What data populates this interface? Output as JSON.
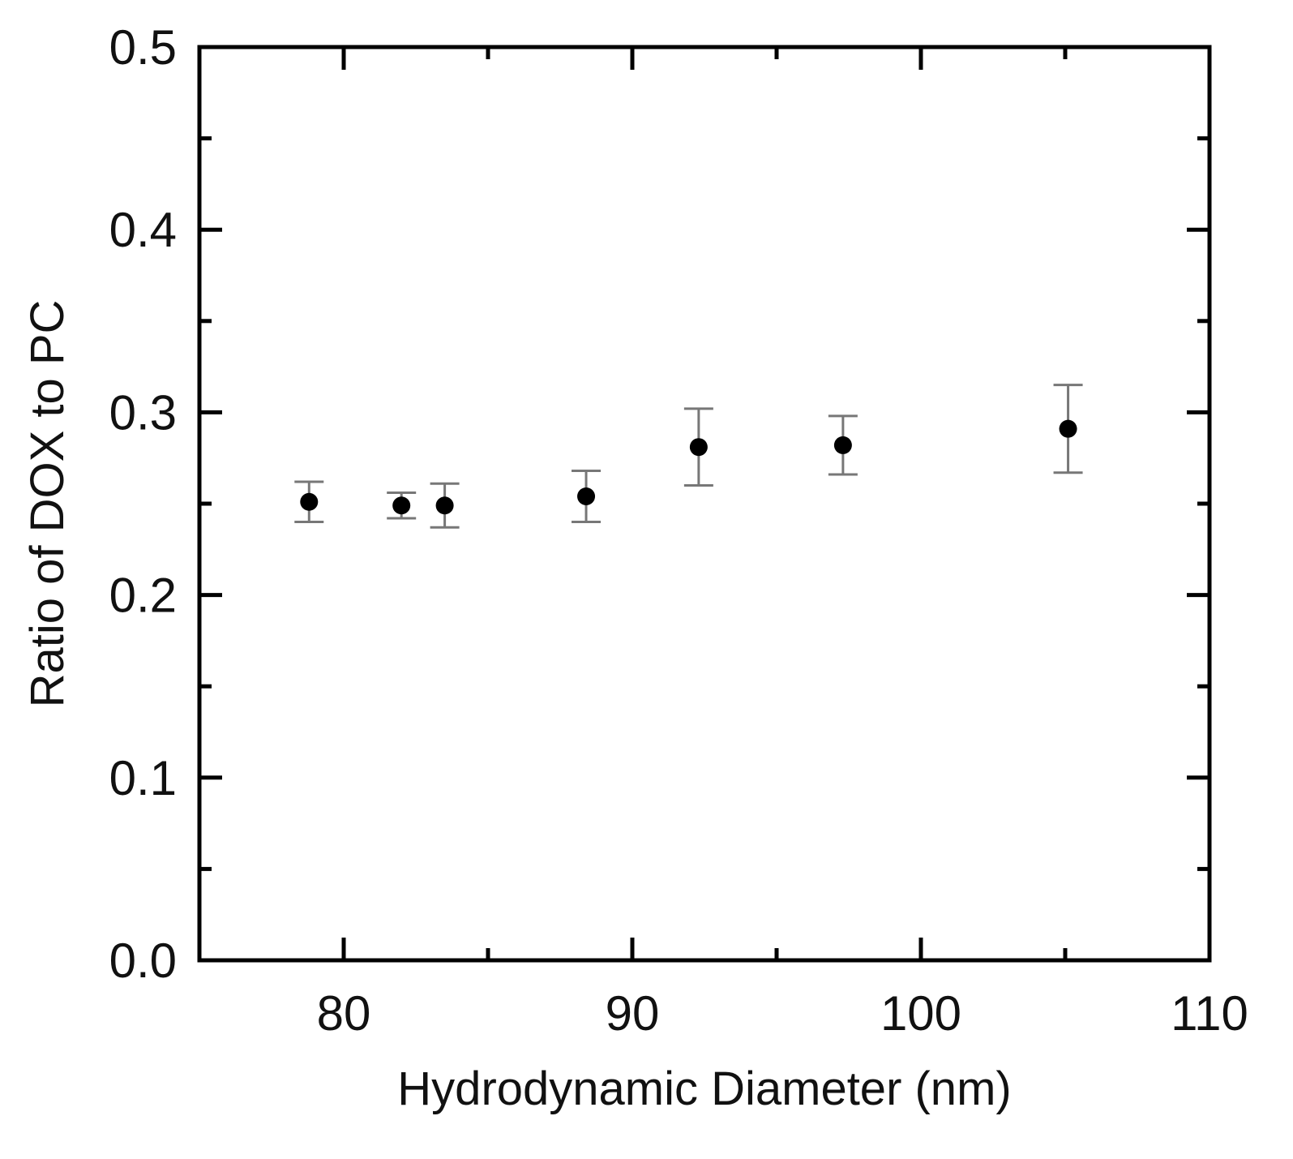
{
  "chart_data": {
    "type": "scatter",
    "title": "",
    "xlabel": "Hydrodynamic Diameter (nm)",
    "ylabel": "Ratio of DOX to PC",
    "xlim": [
      75,
      110
    ],
    "ylim": [
      0.0,
      0.5
    ],
    "x_ticks": [
      80,
      90,
      100,
      110
    ],
    "x_tick_labels": [
      "80",
      "90",
      "100",
      "110"
    ],
    "x_minor_ticks": [
      85,
      95,
      105
    ],
    "y_ticks": [
      0.0,
      0.1,
      0.2,
      0.3,
      0.4,
      0.5
    ],
    "y_tick_labels": [
      "0.0",
      "0.1",
      "0.2",
      "0.3",
      "0.4",
      "0.5"
    ],
    "y_minor_ticks": [
      0.05,
      0.15,
      0.25,
      0.35,
      0.45
    ],
    "grid": false,
    "legend": "none",
    "series": [
      {
        "marker": "filled-circle",
        "color": "#000000",
        "errorbar_color": "#777777",
        "x": [
          78.8,
          82.0,
          83.5,
          88.4,
          92.3,
          97.3,
          105.1
        ],
        "y": [
          0.251,
          0.249,
          0.249,
          0.254,
          0.281,
          0.282,
          0.291
        ],
        "y_error": [
          0.011,
          0.007,
          0.012,
          0.014,
          0.021,
          0.016,
          0.024
        ]
      }
    ]
  }
}
